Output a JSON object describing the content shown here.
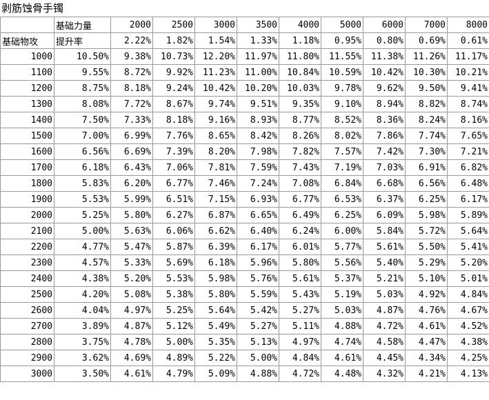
{
  "header": {
    "title": "剥筋蚀骨手镯"
  },
  "table": {
    "column_label": "基础力量",
    "row_label": "基础物攻",
    "rate_label": "提升率",
    "columns": [
      2000,
      2500,
      3000,
      3500,
      4000,
      5000,
      6000,
      7000,
      8000
    ],
    "rates": [
      "2.22%",
      "1.82%",
      "1.54%",
      "1.33%",
      "1.18%",
      "0.95%",
      "0.80%",
      "0.69%",
      "0.61%"
    ],
    "rows": [
      {
        "label": 1000,
        "values": [
          "10.50%",
          "9.38%",
          "10.73%",
          "12.20%",
          "11.97%",
          "11.80%",
          "11.55%",
          "11.38%",
          "11.26%",
          "11.17%"
        ]
      },
      {
        "label": 1100,
        "values": [
          "9.55%",
          "8.72%",
          "9.92%",
          "11.23%",
          "11.00%",
          "10.84%",
          "10.59%",
          "10.42%",
          "10.30%",
          "10.21%"
        ]
      },
      {
        "label": 1200,
        "values": [
          "8.75%",
          "8.18%",
          "9.24%",
          "10.42%",
          "10.20%",
          "10.03%",
          "9.78%",
          "9.62%",
          "9.50%",
          "9.41%"
        ]
      },
      {
        "label": 1300,
        "values": [
          "8.08%",
          "7.72%",
          "8.67%",
          "9.74%",
          "9.51%",
          "9.35%",
          "9.10%",
          "8.94%",
          "8.82%",
          "8.74%"
        ]
      },
      {
        "label": 1400,
        "values": [
          "7.50%",
          "7.33%",
          "8.18%",
          "9.16%",
          "8.93%",
          "8.77%",
          "8.52%",
          "8.36%",
          "8.24%",
          "8.16%"
        ]
      },
      {
        "label": 1500,
        "values": [
          "7.00%",
          "6.99%",
          "7.76%",
          "8.65%",
          "8.42%",
          "8.26%",
          "8.02%",
          "7.86%",
          "7.74%",
          "7.65%"
        ]
      },
      {
        "label": 1600,
        "values": [
          "6.56%",
          "6.69%",
          "7.39%",
          "8.20%",
          "7.98%",
          "7.82%",
          "7.57%",
          "7.42%",
          "7.30%",
          "7.21%"
        ]
      },
      {
        "label": 1700,
        "values": [
          "6.18%",
          "6.43%",
          "7.06%",
          "7.81%",
          "7.59%",
          "7.43%",
          "7.19%",
          "7.03%",
          "6.91%",
          "6.82%"
        ]
      },
      {
        "label": 1800,
        "values": [
          "5.83%",
          "6.20%",
          "6.77%",
          "7.46%",
          "7.24%",
          "7.08%",
          "6.84%",
          "6.68%",
          "6.56%",
          "6.48%"
        ]
      },
      {
        "label": 1900,
        "values": [
          "5.53%",
          "5.99%",
          "6.51%",
          "7.15%",
          "6.93%",
          "6.77%",
          "6.53%",
          "6.37%",
          "6.25%",
          "6.17%"
        ]
      },
      {
        "label": 2000,
        "values": [
          "5.25%",
          "5.80%",
          "6.27%",
          "6.87%",
          "6.65%",
          "6.49%",
          "6.25%",
          "6.09%",
          "5.98%",
          "5.89%"
        ]
      },
      {
        "label": 2100,
        "values": [
          "5.00%",
          "5.63%",
          "6.06%",
          "6.62%",
          "6.40%",
          "6.24%",
          "6.00%",
          "5.84%",
          "5.72%",
          "5.64%"
        ]
      },
      {
        "label": 2200,
        "values": [
          "4.77%",
          "5.47%",
          "5.87%",
          "6.39%",
          "6.17%",
          "6.01%",
          "5.77%",
          "5.61%",
          "5.50%",
          "5.41%"
        ]
      },
      {
        "label": 2300,
        "values": [
          "4.57%",
          "5.33%",
          "5.69%",
          "6.18%",
          "5.96%",
          "5.80%",
          "5.56%",
          "5.40%",
          "5.29%",
          "5.20%"
        ]
      },
      {
        "label": 2400,
        "values": [
          "4.38%",
          "5.20%",
          "5.53%",
          "5.98%",
          "5.76%",
          "5.61%",
          "5.37%",
          "5.21%",
          "5.10%",
          "5.01%"
        ]
      },
      {
        "label": 2500,
        "values": [
          "4.20%",
          "5.08%",
          "5.38%",
          "5.80%",
          "5.59%",
          "5.43%",
          "5.19%",
          "5.03%",
          "4.92%",
          "4.84%"
        ]
      },
      {
        "label": 2600,
        "values": [
          "4.04%",
          "4.97%",
          "5.25%",
          "5.64%",
          "5.42%",
          "5.27%",
          "5.03%",
          "4.87%",
          "4.76%",
          "4.67%"
        ]
      },
      {
        "label": 2700,
        "values": [
          "3.89%",
          "4.87%",
          "5.12%",
          "5.49%",
          "5.27%",
          "5.11%",
          "4.88%",
          "4.72%",
          "4.61%",
          "4.52%"
        ]
      },
      {
        "label": 2800,
        "values": [
          "3.75%",
          "4.78%",
          "5.00%",
          "5.35%",
          "5.13%",
          "4.97%",
          "4.74%",
          "4.58%",
          "4.47%",
          "4.38%"
        ]
      },
      {
        "label": 2900,
        "values": [
          "3.62%",
          "4.69%",
          "4.89%",
          "5.22%",
          "5.00%",
          "4.84%",
          "4.61%",
          "4.45%",
          "4.34%",
          "4.25%"
        ]
      },
      {
        "label": 3000,
        "values": [
          "3.50%",
          "4.61%",
          "4.79%",
          "5.09%",
          "4.88%",
          "4.72%",
          "4.48%",
          "4.32%",
          "4.21%",
          "4.13%"
        ]
      }
    ]
  }
}
